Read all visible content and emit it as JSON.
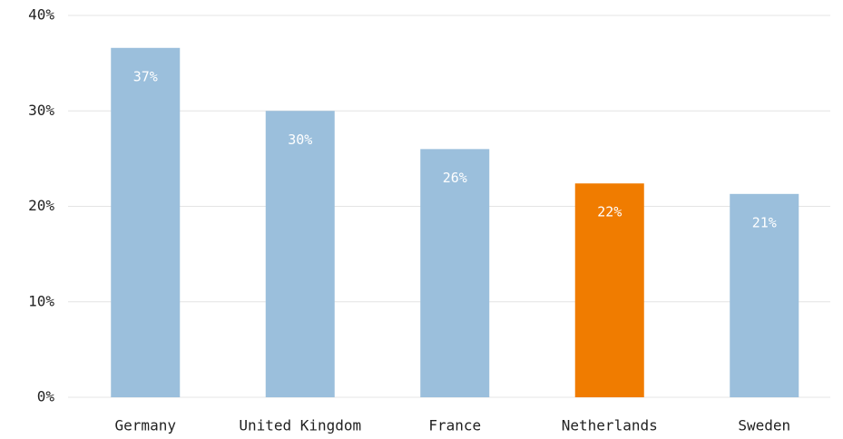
{
  "chart_data": {
    "type": "bar",
    "categories": [
      "Germany",
      "United Kingdom",
      "France",
      "Netherlands",
      "Sweden"
    ],
    "values": [
      36.6,
      30,
      26,
      22.4,
      21.3
    ],
    "value_labels": [
      "37%",
      "30%",
      "26%",
      "22%",
      "21%"
    ],
    "colors": [
      "#9bbfdc",
      "#9bbfdc",
      "#9bbfdc",
      "#f07c00",
      "#9bbfdc"
    ],
    "ylim": [
      0,
      40
    ],
    "yticks": [
      {
        "value": 0,
        "label": "0%"
      },
      {
        "value": 10,
        "label": "10%"
      },
      {
        "value": 20,
        "label": "20%"
      },
      {
        "value": 30,
        "label": "30%"
      },
      {
        "value": 40,
        "label": "40%"
      }
    ],
    "grid": true
  }
}
